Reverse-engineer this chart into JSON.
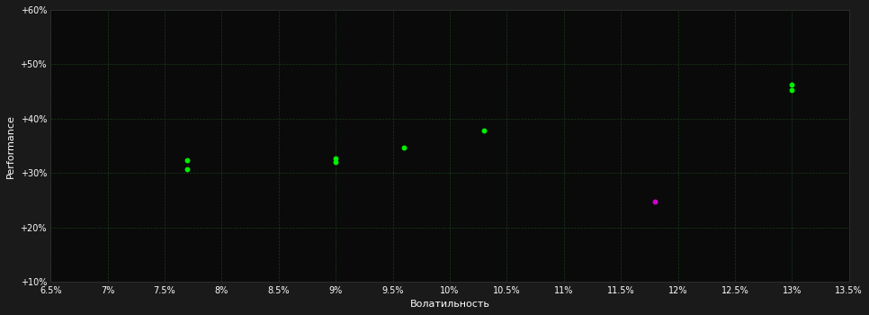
{
  "xlabel": "Волатильность",
  "ylabel": "Performance",
  "bg_figure": "#1a1a1a",
  "bg_axes": "#0a0a0a",
  "grid_color": "#1a3a1a",
  "text_color": "#ffffff",
  "spine_color": "#333333",
  "xlim": [
    0.065,
    0.135
  ],
  "ylim": [
    0.1,
    0.6
  ],
  "xticks": [
    0.065,
    0.07,
    0.075,
    0.08,
    0.085,
    0.09,
    0.095,
    0.1,
    0.105,
    0.11,
    0.115,
    0.12,
    0.125,
    0.13,
    0.135
  ],
  "yticks": [
    0.1,
    0.2,
    0.3,
    0.4,
    0.5,
    0.6
  ],
  "points_green": [
    [
      0.077,
      0.323
    ],
    [
      0.077,
      0.307
    ],
    [
      0.09,
      0.327
    ],
    [
      0.09,
      0.32
    ],
    [
      0.096,
      0.347
    ],
    [
      0.103,
      0.378
    ],
    [
      0.13,
      0.462
    ],
    [
      0.13,
      0.453
    ]
  ],
  "points_magenta": [
    [
      0.118,
      0.248
    ]
  ],
  "point_size": 18,
  "tick_fontsize": 7,
  "label_fontsize": 8,
  "ylabel_fontsize": 8
}
